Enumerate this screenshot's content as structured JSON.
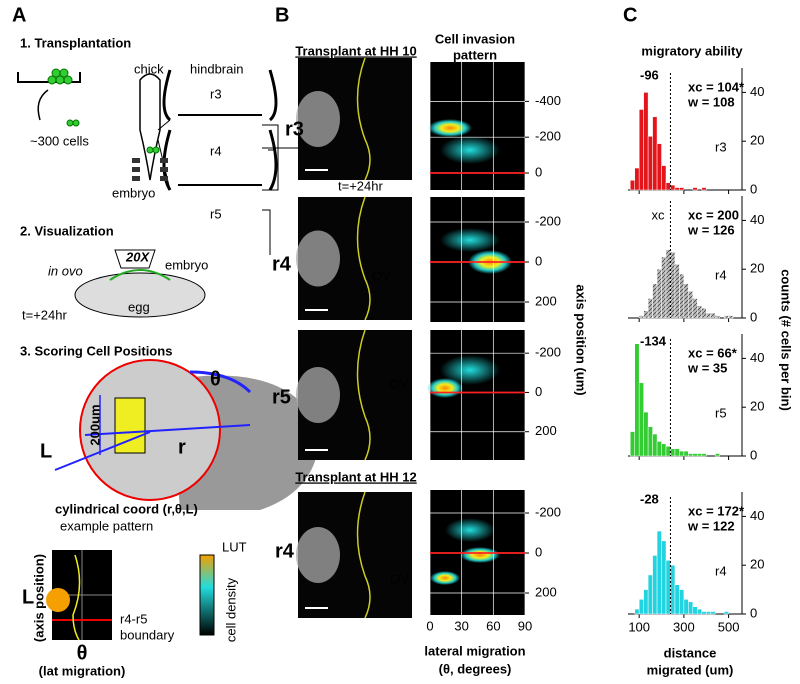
{
  "panel_a": {
    "label": "A",
    "step1": "1. Transplantation",
    "chick": "chick",
    "hindbrain": "hindbrain",
    "cells": "~300 cells",
    "embryo": "embryo",
    "r3": "r3",
    "r4": "r4",
    "r5": "r5",
    "step2": "2. Visualization",
    "objective": "20X",
    "in_ovo": "in ovo",
    "embryo2": "embryo",
    "time": "t=+24hr",
    "egg": "egg",
    "step3": "3. Scoring Cell Positions",
    "theta": "θ",
    "scale": "200um",
    "r": "r",
    "L": "L",
    "coord": "cylindrical coord (r,θ,L)",
    "example": "example pattern",
    "L2": "L",
    "axis_position": "(axis position)",
    "boundary1": "r4-r5",
    "boundary2": "boundary",
    "theta2": "θ",
    "lat": "(lat migration)",
    "lut": "LUT",
    "density": "cell density"
  },
  "panel_b": {
    "label": "B",
    "hh10": "Transplant at HH 10",
    "hh12": "Transplant at HH 12",
    "pattern1": "Cell invasion",
    "pattern2": "pattern",
    "time": "t=+24hr",
    "y_label": "axis position (um)",
    "x_label1": "lateral migration",
    "x_label2": "(θ, degrees)",
    "xlim": [
      0,
      90
    ],
    "xticks": [
      0,
      30,
      60,
      90
    ],
    "rows": [
      {
        "label": "r3",
        "ylim": [
          -620,
          95
        ],
        "yticks": [
          -400,
          -200,
          0
        ],
        "boundary": 0
      },
      {
        "label": "r4",
        "ylim": [
          -325,
          300
        ],
        "yticks": [
          -200,
          0,
          200
        ],
        "boundary": 0,
        "ov": "OV"
      },
      {
        "label": "r5",
        "ylim": [
          -318,
          344
        ],
        "yticks": [
          -200,
          0,
          200
        ],
        "boundary": 0,
        "ov": "OV"
      },
      {
        "label": "r4",
        "ylim": [
          -315,
          310
        ],
        "yticks": [
          -200,
          0,
          200
        ],
        "boundary": 0,
        "ov": "OV"
      }
    ]
  },
  "panel_c": {
    "label": "C",
    "title": "migratory ability",
    "y_label": "counts (# cells per bin)",
    "x_label1": "distance",
    "x_label2": "migrated (um)",
    "xlim": [
      50,
      560
    ],
    "xticks": [
      100,
      300,
      500
    ],
    "ylim": [
      0,
      50
    ],
    "yticks": [
      0,
      20,
      40
    ],
    "reference": 240,
    "histograms": [
      {
        "label": "r3",
        "color": "#e3141a",
        "shift": "-96",
        "xc": "xc = 104*",
        "w": "w = 108",
        "bins": [
          60,
          80,
          100,
          120,
          140,
          160,
          180,
          200,
          220,
          240,
          260,
          280,
          300,
          320,
          340,
          360,
          380,
          400
        ],
        "counts": [
          4,
          9,
          33,
          40,
          22,
          30,
          19,
          10,
          3,
          2,
          1,
          1,
          0,
          0,
          1,
          0,
          1
        ]
      },
      {
        "label": "r4",
        "color": "#b8b8b8",
        "peak": "xc",
        "xc": "xc = 200",
        "w": "w = 126",
        "bins": [
          100,
          120,
          140,
          160,
          180,
          200,
          220,
          240,
          260,
          280,
          300,
          320,
          340,
          360,
          380,
          400,
          420,
          440,
          460,
          480,
          500,
          520
        ],
        "counts": [
          1,
          3,
          8,
          14,
          20,
          25,
          28,
          27,
          22,
          18,
          14,
          11,
          8,
          5,
          4,
          2,
          2,
          1,
          0,
          1,
          1
        ]
      },
      {
        "label": "r5",
        "color": "#33cc33",
        "shift": "-134",
        "xc": "xc = 66*",
        "w": "w = 35",
        "bins": [
          60,
          80,
          100,
          120,
          140,
          160,
          180,
          200,
          220,
          240,
          260,
          280,
          300,
          320,
          340,
          360,
          380,
          400,
          420,
          440,
          460
        ],
        "counts": [
          10,
          46,
          30,
          18,
          12,
          9,
          6,
          5,
          4,
          3,
          3,
          2,
          2,
          1,
          1,
          1,
          1,
          0,
          0,
          1
        ]
      },
      {
        "label": "r4",
        "color": "#22d3e0",
        "shift": "-28",
        "xc": "xc = 172*",
        "w": "w = 122",
        "bins": [
          80,
          100,
          120,
          140,
          160,
          180,
          200,
          220,
          240,
          260,
          280,
          300,
          320,
          340,
          360,
          380,
          400,
          420,
          440,
          460,
          480,
          500
        ],
        "counts": [
          2,
          6,
          10,
          16,
          24,
          34,
          30,
          22,
          20,
          12,
          10,
          6,
          5,
          3,
          2,
          1,
          1,
          1,
          0,
          0,
          1
        ]
      }
    ]
  }
}
